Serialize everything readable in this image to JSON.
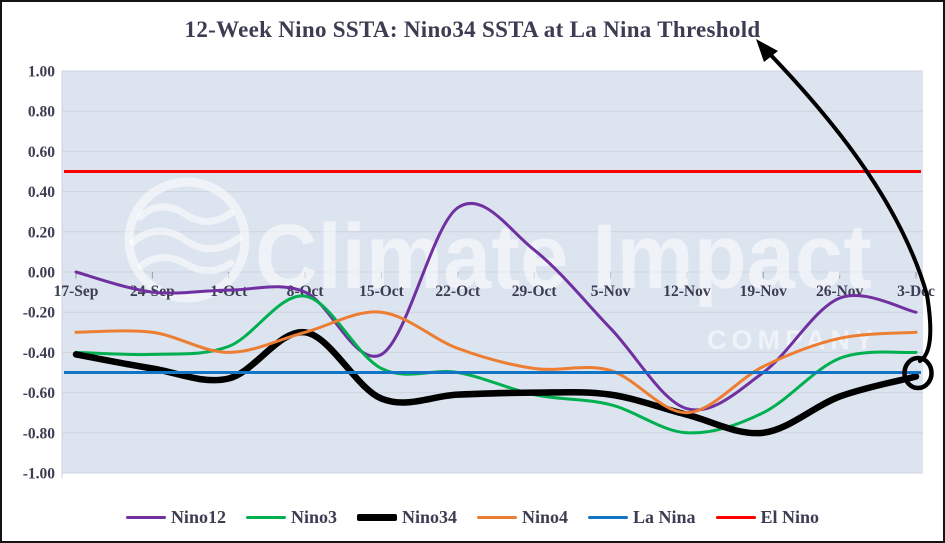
{
  "title": "12-Week Nino SSTA: Nino34 SSTA at La Nina Threshold",
  "watermark": {
    "logo": "climate-impact-company-logo",
    "line1": "Climate Impact",
    "line2": "COMPANY"
  },
  "colors": {
    "plot_background": "#dce4f0",
    "gridline": "#cfd4dc",
    "axis_tick": "#959ca8",
    "axis_text": "#3c3c52",
    "title_text": "#3c3c52",
    "figure_border": "#141414",
    "watermark": "rgba(255,255,255,0.55)",
    "annotation": "#000000"
  },
  "chart_data": {
    "type": "line",
    "title": "12-Week Nino SSTA: Nino34 SSTA at La Nina Threshold",
    "xlabel": "",
    "ylabel": "",
    "ylim": [
      -1.0,
      1.0
    ],
    "ytick_step": 0.2,
    "grid": "horizontal",
    "legend_position": "bottom",
    "smoothed_lines": true,
    "y_tick_labels": [
      "1.00",
      "0.80",
      "0.60",
      "0.40",
      "0.20",
      "0.00",
      "-0.20",
      "-0.40",
      "-0.60",
      "-0.80",
      "-1.00"
    ],
    "categories": [
      "17-Sep",
      "24-Sep",
      "1-Oct",
      "8-Oct",
      "15-Oct",
      "22-Oct",
      "29-Oct",
      "5-Nov",
      "12-Nov",
      "19-Nov",
      "26-Nov",
      "3-Dec"
    ],
    "series": [
      {
        "name": "Nino12",
        "color": "#7030A0",
        "width": 3,
        "legend_weight": 3.5,
        "values": [
          0.0,
          -0.1,
          -0.09,
          -0.1,
          -0.41,
          0.32,
          0.11,
          -0.28,
          -0.68,
          -0.5,
          -0.13,
          -0.2
        ]
      },
      {
        "name": "Nino3",
        "color": "#00B050",
        "width": 3,
        "legend_weight": 3.5,
        "values": [
          -0.4,
          -0.41,
          -0.37,
          -0.12,
          -0.48,
          -0.5,
          -0.61,
          -0.66,
          -0.8,
          -0.7,
          -0.43,
          -0.4
        ]
      },
      {
        "name": "Nino34",
        "color": "#000000",
        "width": 6.5,
        "legend_weight": 7,
        "values": [
          -0.41,
          -0.48,
          -0.53,
          -0.3,
          -0.63,
          -0.61,
          -0.6,
          -0.61,
          -0.71,
          -0.8,
          -0.62,
          -0.52
        ]
      },
      {
        "name": "Nino4",
        "color": "#ED7D31",
        "width": 3,
        "legend_weight": 3.5,
        "values": [
          -0.3,
          -0.3,
          -0.4,
          -0.3,
          -0.2,
          -0.38,
          -0.48,
          -0.49,
          -0.7,
          -0.47,
          -0.33,
          -0.3
        ]
      },
      {
        "name": "La Nina",
        "color": "#1274C4",
        "width": 3,
        "legend_weight": 3.5,
        "threshold": -0.5
      },
      {
        "name": "El Nino",
        "color": "#FF0000",
        "width": 3,
        "legend_weight": 3.5,
        "threshold": 0.5
      }
    ],
    "annotation": {
      "type": "arrow-circle-callout",
      "from": "title",
      "to": "Nino34 last point (3-Dec)",
      "circled_value": -0.52
    }
  }
}
